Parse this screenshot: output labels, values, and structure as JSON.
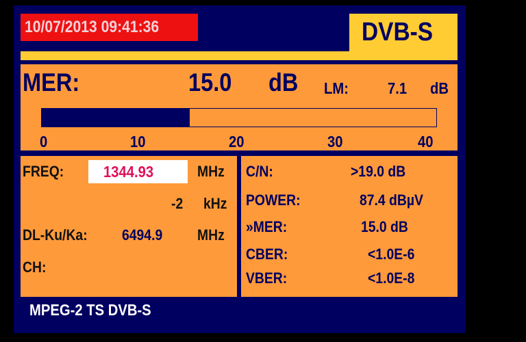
{
  "header": {
    "datetime": "10/07/2013 09:41:36",
    "mode": "DVB-S"
  },
  "mer_panel": {
    "label": "MER:",
    "value": "15.0",
    "unit": "dB",
    "lm_label": "LM:",
    "lm_value": "7.1",
    "lm_unit": "dB",
    "bar_value": 15.0,
    "bar_max": 40,
    "scale": [
      "0",
      "10",
      "20",
      "30",
      "40"
    ]
  },
  "left_panel": {
    "freq_label": "FREQ:",
    "freq_value": "1344.93",
    "freq_unit": "MHz",
    "offset_value": "-2",
    "offset_unit": "kHz",
    "dl_label": "DL-Ku/Ka:",
    "dl_value": "6494.9",
    "dl_unit": "MHz",
    "ch_label": "CH:"
  },
  "right_panel": {
    "rows": [
      {
        "label": "C/N:",
        "value": ">19.0 dB"
      },
      {
        "label": "POWER:",
        "value": "87.4 dBµV"
      },
      {
        "label": "»MER:",
        "value": "15.0 dB"
      },
      {
        "label": "CBER:",
        "value": "<1.0E-6"
      },
      {
        "label": "VBER:",
        "value": "<1.0E-8"
      }
    ]
  },
  "footer": {
    "status": "MPEG-2 TS DVB-S"
  },
  "colors": {
    "navy": "#000060",
    "orange": "#FF9A3A",
    "yellow": "#FFCC33",
    "red": "#EE1111",
    "freq_text": "#E0105A"
  }
}
